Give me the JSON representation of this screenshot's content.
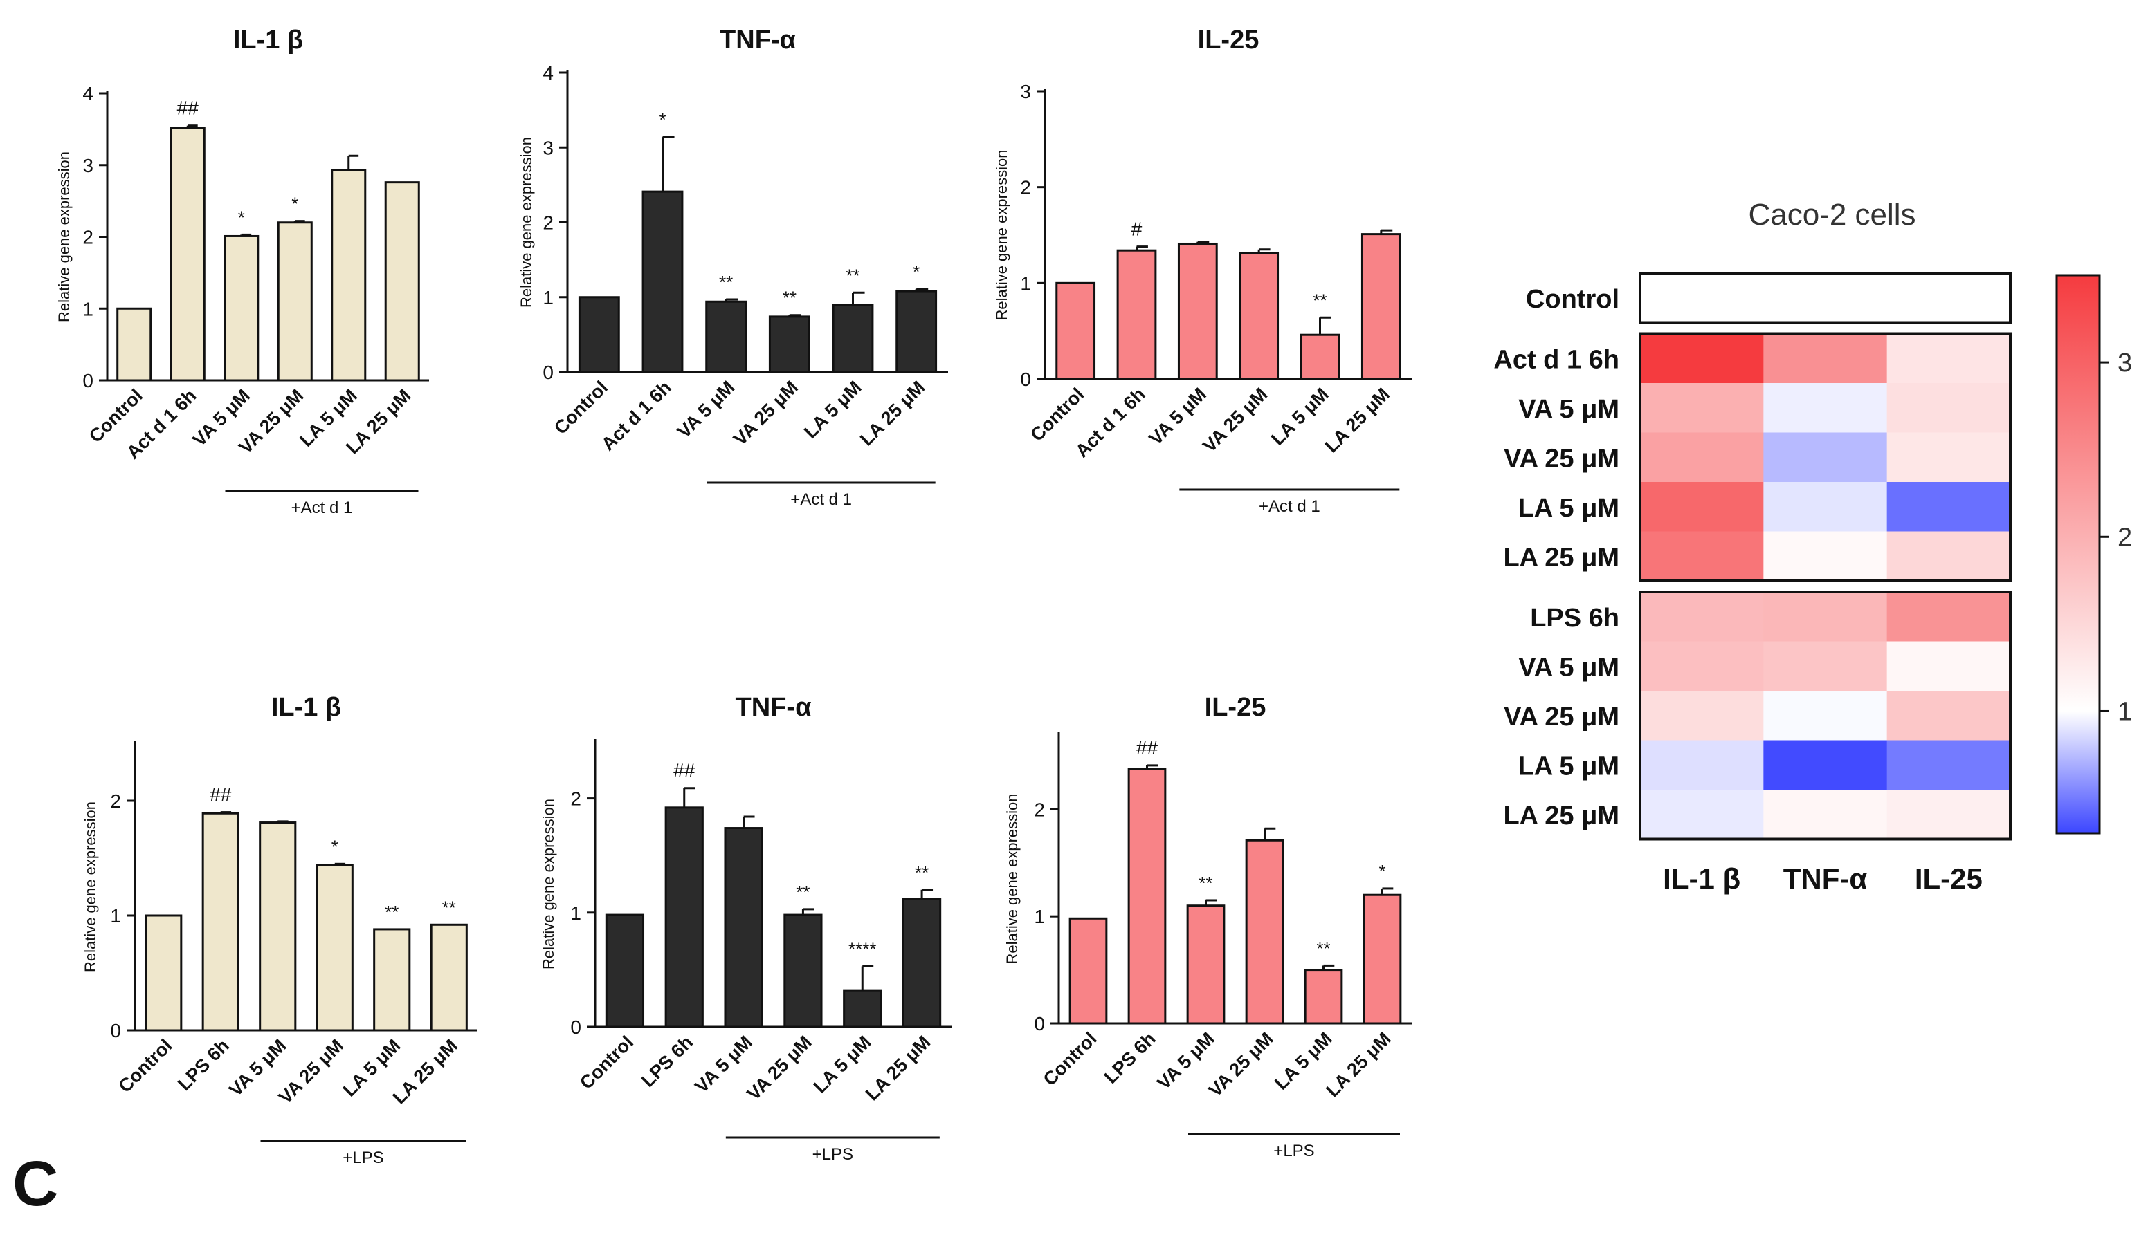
{
  "panel_label": "C",
  "chart_data": [
    {
      "type": "bar",
      "title": "IL-1 β",
      "ylabel": "Relative gene expression",
      "ylim": [
        0,
        4
      ],
      "yticks": [
        0,
        1,
        2,
        3,
        4
      ],
      "categories": [
        "Control",
        "Act d 1 6h",
        "VA 5 μM",
        "VA 25 μM",
        "LA 5 μM",
        "LA 25 μM"
      ],
      "values": [
        1.0,
        3.52,
        2.01,
        2.2,
        2.93,
        2.76
      ],
      "errors": [
        0,
        0.03,
        0.02,
        0.02,
        0.2,
        0
      ],
      "significance": [
        "",
        "##",
        "*",
        "*",
        "",
        ""
      ],
      "color": "#efe7cc",
      "bracket": "+Act d 1"
    },
    {
      "type": "bar",
      "title": "TNF-α",
      "ylabel": "Relative gene expression",
      "ylim": [
        0,
        4
      ],
      "yticks": [
        0,
        1,
        2,
        3,
        4
      ],
      "categories": [
        "Control",
        "Act d 1 6h",
        "VA 5 μM",
        "VA 25 μM",
        "LA 5 μM",
        "LA 25 μM"
      ],
      "values": [
        1.0,
        2.41,
        0.94,
        0.74,
        0.9,
        1.08
      ],
      "errors": [
        0,
        0.73,
        0.03,
        0.02,
        0.16,
        0.03
      ],
      "significance": [
        "",
        "*",
        "**",
        "**",
        "**",
        "*"
      ],
      "color": "#2b2b2b",
      "bracket": "+Act d 1"
    },
    {
      "type": "bar",
      "title": "IL-25",
      "ylabel": "Relative gene expression",
      "ylim": [
        0,
        3
      ],
      "yticks": [
        0,
        1,
        2,
        3
      ],
      "categories": [
        "Control",
        "Act d 1 6h",
        "VA 5 μM",
        "VA 25 μM",
        "LA 5 μM",
        "LA 25 μM"
      ],
      "values": [
        1.0,
        1.34,
        1.41,
        1.31,
        0.46,
        1.51
      ],
      "errors": [
        0,
        0.04,
        0.02,
        0.04,
        0.18,
        0.04
      ],
      "significance": [
        "",
        "#",
        "",
        "",
        "**",
        ""
      ],
      "color": "#f88387",
      "bracket": "+Act d 1"
    },
    {
      "type": "bar",
      "title": "IL-1 β",
      "ylabel": "Relative gene expression",
      "ylim": [
        0,
        2.5
      ],
      "yticks": [
        0,
        1,
        2
      ],
      "categories": [
        "Control",
        "LPS 6h",
        "VA 5 μM",
        "VA 25 μM",
        "LA 5 μM",
        "LA 25 μM"
      ],
      "values": [
        1.0,
        1.89,
        1.81,
        1.44,
        0.88,
        0.92
      ],
      "errors": [
        0,
        0.01,
        0.01,
        0.01,
        0,
        0
      ],
      "significance": [
        "",
        "##",
        "",
        "*",
        "**",
        "**"
      ],
      "color": "#efe7cc",
      "bracket": "+LPS"
    },
    {
      "type": "bar",
      "title": "TNF-α",
      "ylabel": "Relative gene expression",
      "ylim": [
        0,
        2.5
      ],
      "yticks": [
        0,
        1,
        2
      ],
      "categories": [
        "Control",
        "LPS 6h",
        "VA 5 μM",
        "VA 25 μM",
        "LA 5 μM",
        "LA 25 μM"
      ],
      "values": [
        0.98,
        1.92,
        1.74,
        0.98,
        0.32,
        1.12
      ],
      "errors": [
        0,
        0.17,
        0.1,
        0.05,
        0.21,
        0.08
      ],
      "significance": [
        "",
        "##",
        "",
        "**",
        "****",
        "**"
      ],
      "color": "#2b2b2b",
      "bracket": "+LPS"
    },
    {
      "type": "bar",
      "title": "IL-25",
      "ylabel": "Relative gene expression",
      "ylim": [
        0,
        2.7
      ],
      "yticks": [
        0,
        1,
        2
      ],
      "categories": [
        "Control",
        "LPS 6h",
        "VA 5 μM",
        "VA 25 μM",
        "LA 5 μM",
        "LA 25 μM"
      ],
      "values": [
        0.98,
        2.38,
        1.1,
        1.71,
        0.5,
        1.2
      ],
      "errors": [
        0,
        0.03,
        0.05,
        0.11,
        0.04,
        0.06
      ],
      "significance": [
        "",
        "##",
        "**",
        "",
        "**",
        "*"
      ],
      "color": "#f88387",
      "bracket": "+LPS"
    },
    {
      "type": "heatmap",
      "title": "Caco-2 cells",
      "columns": [
        "IL-1 β",
        "TNF-α",
        "IL-25"
      ],
      "rows": [
        "Control",
        "Act d 1 6h",
        "VA 5 μM",
        "VA 25 μM",
        "LA 5 μM",
        "LA 25 μM",
        "LPS 6h",
        "VA 5 μM",
        "VA 25 μM",
        "LA 5 μM",
        "LA 25 μM"
      ],
      "groups": [
        [
          0
        ],
        [
          1,
          2,
          3,
          4,
          5
        ],
        [
          6,
          7,
          8,
          9,
          10
        ]
      ],
      "values": [
        [
          1.0,
          1.0,
          1.0
        ],
        [
          3.52,
          2.41,
          1.34
        ],
        [
          2.01,
          0.94,
          1.41
        ],
        [
          2.2,
          0.74,
          1.31
        ],
        [
          2.93,
          0.9,
          0.46
        ],
        [
          2.76,
          1.08,
          1.51
        ],
        [
          1.89,
          1.92,
          2.38
        ],
        [
          1.81,
          1.74,
          1.1
        ],
        [
          1.44,
          0.98,
          1.71
        ],
        [
          0.88,
          0.32,
          0.5
        ],
        [
          0.92,
          1.12,
          1.2
        ]
      ],
      "scale": {
        "min": 0.3,
        "mid": 1.0,
        "max": 3.5,
        "ticks": [
          1,
          2,
          3
        ],
        "low_color": "#3c46ff",
        "mid_color": "#ffffff",
        "high_color": "#f53b3f"
      }
    }
  ]
}
